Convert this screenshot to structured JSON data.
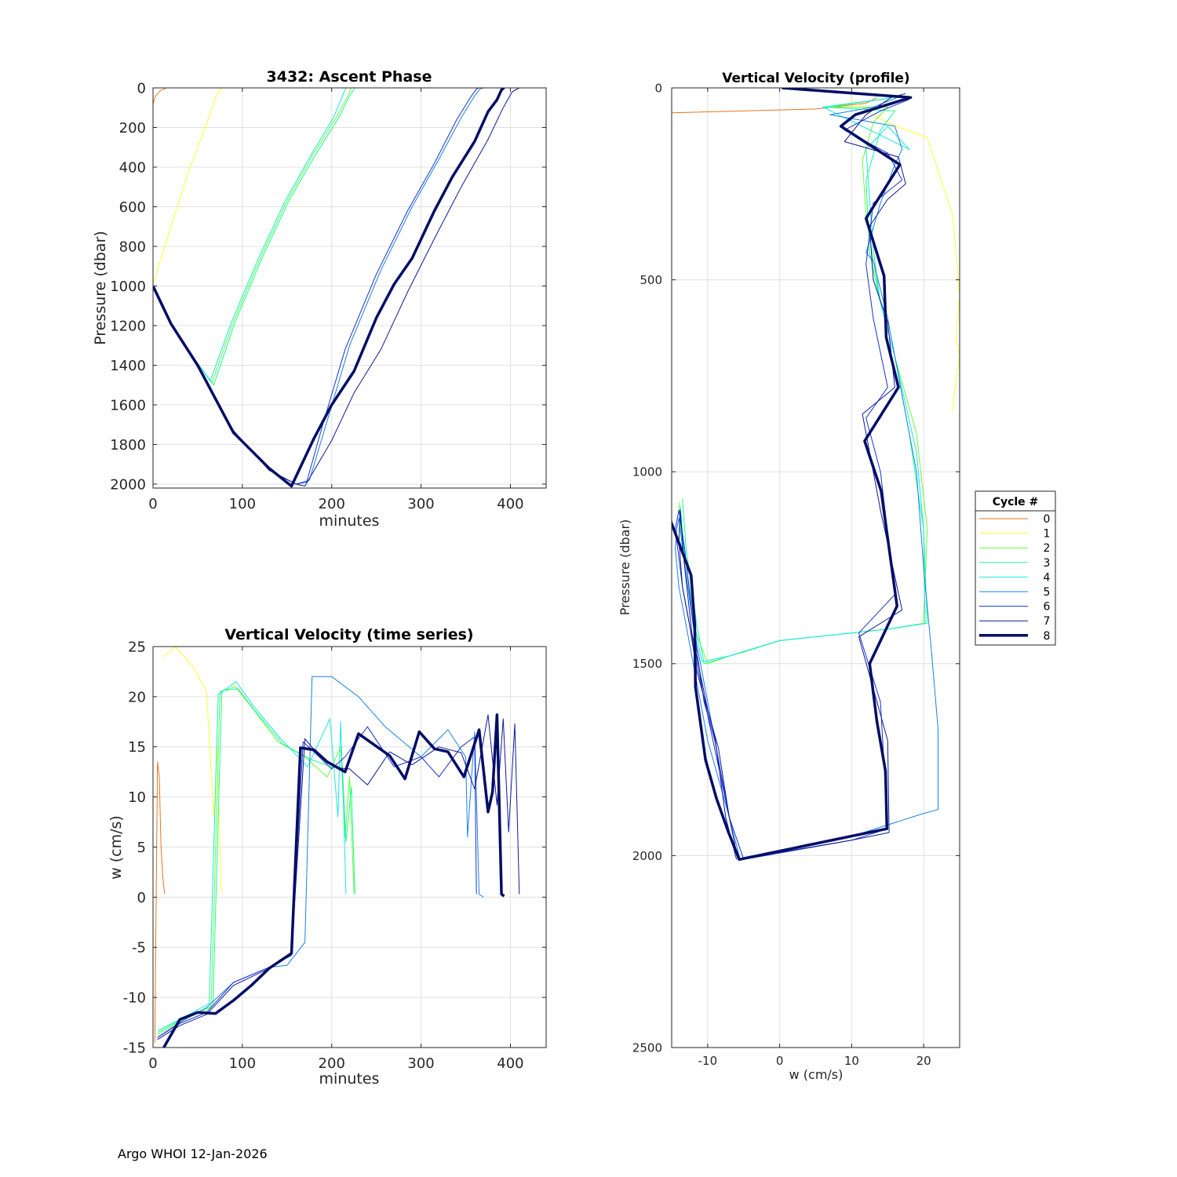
{
  "figure": {
    "footer": "Argo WHOI 12-Jan-2026"
  },
  "legend": {
    "title": "Cycle #",
    "entries": [
      "0",
      "1",
      "2",
      "3",
      "4",
      "5",
      "6",
      "7",
      "8"
    ],
    "colors": [
      "#e8751a",
      "#ffff33",
      "#66ff33",
      "#1aff99",
      "#1ae6e6",
      "#1a80e6",
      "#1a33cc",
      "#0d1a99",
      "#000d66"
    ]
  },
  "chart_data": [
    {
      "type": "line",
      "title": "3432: Ascent Phase",
      "xlabel": "minutes",
      "ylabel": "Pressure (dbar)",
      "xlim": [
        0,
        440
      ],
      "ylim": [
        0,
        2020
      ],
      "y_reversed": true,
      "xticks": [
        0,
        100,
        200,
        300,
        400
      ],
      "yticks": [
        0,
        200,
        400,
        600,
        800,
        1000,
        1200,
        1400,
        1600,
        1800,
        2000
      ],
      "grid": true,
      "series": [
        {
          "cycle": "0",
          "x": [
            0,
            3,
            8,
            15
          ],
          "y": [
            80,
            40,
            15,
            0
          ]
        },
        {
          "cycle": "1",
          "x": [
            0,
            20,
            40,
            60,
            70,
            75,
            78
          ],
          "y": [
            990,
            700,
            420,
            180,
            50,
            10,
            0
          ]
        },
        {
          "cycle": "2",
          "x": [
            0,
            20,
            45,
            66,
            90,
            120,
            150,
            180,
            205,
            218,
            222
          ],
          "y": [
            1000,
            1190,
            1360,
            1490,
            1180,
            860,
            570,
            330,
            150,
            40,
            0
          ]
        },
        {
          "cycle": "3",
          "x": [
            0,
            20,
            45,
            68,
            92,
            122,
            152,
            183,
            208,
            220,
            226
          ],
          "y": [
            1000,
            1190,
            1360,
            1500,
            1180,
            860,
            570,
            330,
            150,
            40,
            0
          ]
        },
        {
          "cycle": "4",
          "x": [
            0,
            20,
            45,
            64,
            88,
            118,
            148,
            178,
            202,
            212,
            216
          ],
          "y": [
            1000,
            1190,
            1360,
            1480,
            1180,
            860,
            570,
            330,
            150,
            40,
            0
          ]
        },
        {
          "cycle": "5",
          "x": [
            0,
            20,
            50,
            90,
            130,
            160,
            175,
            195,
            220,
            255,
            290,
            320,
            345,
            360,
            366,
            370
          ],
          "y": [
            1000,
            1190,
            1400,
            1730,
            1930,
            2000,
            1980,
            1680,
            1300,
            920,
            600,
            360,
            150,
            40,
            5,
            0
          ]
        },
        {
          "cycle": "6",
          "x": [
            0,
            20,
            50,
            90,
            130,
            160,
            172,
            190,
            215,
            250,
            285,
            315,
            340,
            355,
            362,
            365
          ],
          "y": [
            1000,
            1190,
            1400,
            1730,
            1930,
            2000,
            1990,
            1700,
            1320,
            940,
            620,
            380,
            160,
            50,
            5,
            0
          ]
        },
        {
          "cycle": "7",
          "x": [
            0,
            20,
            50,
            90,
            130,
            160,
            170,
            200,
            225,
            255,
            285,
            315,
            345,
            375,
            392,
            402,
            410
          ],
          "y": [
            1000,
            1190,
            1400,
            1730,
            1930,
            2000,
            2010,
            1780,
            1540,
            1320,
            1030,
            760,
            500,
            260,
            100,
            20,
            0
          ]
        },
        {
          "cycle": "8",
          "x": [
            0,
            20,
            50,
            90,
            130,
            155,
            180,
            200,
            225,
            250,
            270,
            290,
            315,
            335,
            360,
            375,
            385,
            390,
            393
          ],
          "y": [
            1000,
            1190,
            1400,
            1740,
            1920,
            2010,
            1770,
            1600,
            1430,
            1160,
            990,
            860,
            620,
            450,
            270,
            120,
            60,
            10,
            0
          ]
        }
      ]
    },
    {
      "type": "line",
      "title": "Vertical Velocity (time series)",
      "xlabel": "minutes",
      "ylabel": "w (cm/s)",
      "xlim": [
        0,
        440
      ],
      "ylim": [
        -15,
        25
      ],
      "xticks": [
        0,
        100,
        200,
        300,
        400
      ],
      "yticks": [
        -15,
        -10,
        -5,
        0,
        5,
        10,
        15,
        20,
        25
      ],
      "grid": true,
      "series": [
        {
          "cycle": "0",
          "x": [
            2,
            5,
            7,
            9,
            11,
            13
          ],
          "y": [
            -14.5,
            13.5,
            12,
            5,
            2,
            0.3
          ]
        },
        {
          "cycle": "1",
          "x": [
            12,
            25,
            45,
            60,
            68,
            72,
            76,
            78
          ],
          "y": [
            24,
            25,
            23,
            20.5,
            8,
            15,
            1,
            0.3
          ]
        },
        {
          "cycle": "2",
          "x": [
            5,
            30,
            65,
            75,
            92,
            110,
            140,
            170,
            195,
            210,
            215,
            220,
            225
          ],
          "y": [
            -13.7,
            -12.4,
            -11,
            20.5,
            21,
            19,
            15.5,
            14,
            12,
            15,
            6,
            12,
            0.3
          ]
        },
        {
          "cycle": "3",
          "x": [
            5,
            30,
            67,
            77,
            95,
            115,
            145,
            175,
            200,
            212,
            216,
            222,
            226
          ],
          "y": [
            -13.5,
            -12.3,
            -10.8,
            20.6,
            20.8,
            18.5,
            15.3,
            13.8,
            13,
            13,
            5.5,
            11,
            0.3
          ]
        },
        {
          "cycle": "4",
          "x": [
            5,
            30,
            63,
            73,
            93,
            113,
            143,
            173,
            198,
            207,
            210,
            213,
            216
          ],
          "y": [
            -13.3,
            -12.2,
            -10.6,
            20.2,
            21.5,
            19,
            15.8,
            13,
            17.8,
            8,
            17.5,
            10,
            0.3
          ]
        },
        {
          "cycle": "5",
          "x": [
            5,
            30,
            60,
            90,
            130,
            150,
            170,
            178,
            200,
            230,
            260,
            300,
            330,
            350,
            352,
            360,
            365,
            370
          ],
          "y": [
            -14,
            -12.5,
            -11,
            -8.5,
            -7,
            -6.8,
            -4.5,
            22,
            22,
            20,
            17,
            14,
            16.7,
            14,
            6,
            16.5,
            0.3,
            0
          ]
        },
        {
          "cycle": "6",
          "x": [
            5,
            30,
            60,
            90,
            130,
            155,
            168,
            180,
            200,
            215,
            240,
            270,
            300,
            320,
            345,
            360,
            362
          ],
          "y": [
            -14,
            -12.6,
            -11.5,
            -8.5,
            -7,
            -5.8,
            15.5,
            14.5,
            12.8,
            14,
            17,
            13,
            14,
            12,
            15,
            16,
            0.3
          ]
        },
        {
          "cycle": "7",
          "x": [
            5,
            30,
            60,
            90,
            130,
            155,
            170,
            185,
            205,
            220,
            240,
            265,
            290,
            320,
            345,
            360,
            375,
            385,
            392,
            398,
            405,
            410
          ],
          "y": [
            -14.2,
            -12.8,
            -11.7,
            -8.8,
            -7.1,
            -5.6,
            15.8,
            14.2,
            12.9,
            12.8,
            11.2,
            14.5,
            13.2,
            15.0,
            14.4,
            10.8,
            18.2,
            9.2,
            17.8,
            6.5,
            17.3,
            0.3
          ]
        },
        {
          "cycle": "8",
          "x": [
            12,
            30,
            50,
            70,
            90,
            110,
            130,
            155,
            165,
            180,
            195,
            215,
            230,
            265,
            282,
            298,
            315,
            330,
            348,
            365,
            375,
            380,
            385,
            390,
            393
          ],
          "y": [
            -15,
            -12.2,
            -11.5,
            -11.6,
            -10.3,
            -8.8,
            -7.1,
            -5.6,
            14.9,
            14.7,
            13.5,
            12.5,
            16.3,
            14.1,
            11.8,
            16.5,
            14.8,
            14.5,
            12,
            16.7,
            8.5,
            10.5,
            18.2,
            0.3,
            0.1
          ]
        }
      ]
    },
    {
      "type": "line",
      "title": "Vertical Velocity (profile)",
      "xlabel": "w (cm/s)",
      "ylabel": "Pressure (dbar)",
      "xlim": [
        -15,
        25
      ],
      "ylim": [
        0,
        2500
      ],
      "y_reversed": true,
      "xticks": [
        -10,
        0,
        10,
        20
      ],
      "yticks": [
        0,
        500,
        1000,
        1500,
        2000,
        2500
      ],
      "grid": true,
      "series": [
        {
          "cycle": "0",
          "x": [
            -15,
            5,
            12,
            13.5
          ],
          "y": [
            65,
            55,
            40,
            25
          ]
        },
        {
          "cycle": "1",
          "x": [
            10,
            12,
            15,
            20.5,
            24,
            25,
            24.5,
            25,
            24.5,
            24
          ],
          "y": [
            30,
            60,
            90,
            130,
            330,
            540,
            650,
            700,
            760,
            840
          ]
        },
        {
          "cycle": "2",
          "x": [
            -14,
            -13.5,
            -12,
            -10,
            -7,
            -5,
            0,
            10,
            15,
            20,
            20.5,
            19,
            16,
            14,
            13,
            12,
            11.5,
            13,
            15,
            7,
            14,
            17
          ],
          "y": [
            1080,
            1200,
            1400,
            1500,
            1480,
            1470,
            1440,
            1420,
            1410,
            1395,
            1150,
            900,
            700,
            560,
            450,
            330,
            190,
            90,
            50,
            50,
            30,
            20
          ]
        },
        {
          "cycle": "3",
          "x": [
            -13.5,
            -13,
            -11.5,
            -10.5,
            -7,
            0,
            10,
            15,
            20.5,
            20,
            18,
            16,
            14,
            12.5,
            12,
            14,
            16,
            6,
            14,
            17
          ],
          "y": [
            1070,
            1200,
            1400,
            1500,
            1480,
            1440,
            1420,
            1410,
            1395,
            1150,
            900,
            700,
            560,
            430,
            240,
            110,
            60,
            50,
            30,
            20
          ]
        },
        {
          "cycle": "4",
          "x": [
            -13.8,
            -13.3,
            -11.8,
            -10.8,
            -7,
            0,
            10,
            15,
            20.2,
            20,
            19,
            16,
            14,
            13,
            12,
            15,
            18,
            6,
            14,
            17
          ],
          "y": [
            1090,
            1200,
            1400,
            1495,
            1480,
            1440,
            1420,
            1410,
            1395,
            1150,
            950,
            700,
            560,
            420,
            160,
            100,
            160,
            50,
            30,
            20
          ]
        },
        {
          "cycle": "5",
          "x": [
            -5.5,
            -7,
            -10,
            -12,
            -13,
            -14,
            -14.5,
            -14.3,
            -14,
            -13.5,
            -12,
            -10,
            -8,
            -7,
            -5.5,
            10,
            20,
            22,
            22,
            21,
            20,
            19,
            17,
            15,
            13,
            12,
            14,
            16,
            17,
            16,
            7,
            13,
            17
          ],
          "y": [
            2010,
            1900,
            1700,
            1500,
            1400,
            1300,
            1200,
            1150,
            1120,
            1200,
            1400,
            1600,
            1800,
            1900,
            2010,
            1950,
            1890,
            1880,
            1670,
            1450,
            1250,
            1000,
            800,
            600,
            450,
            430,
            300,
            200,
            160,
            100,
            70,
            50,
            20
          ]
        },
        {
          "cycle": "6",
          "x": [
            -5,
            -7,
            -9.5,
            -11.5,
            -12.5,
            -13.5,
            -14.5,
            -14,
            -13.2,
            -12,
            -10.5,
            -9,
            -7,
            -5,
            10,
            15,
            14,
            11,
            16,
            14,
            12,
            15,
            13,
            12,
            13,
            17,
            15,
            9,
            14,
            18
          ],
          "y": [
            2010,
            1900,
            1680,
            1500,
            1400,
            1300,
            1150,
            1100,
            1200,
            1400,
            1600,
            1700,
            1900,
            2010,
            1960,
            1930,
            1600,
            1420,
            1320,
            1000,
            860,
            780,
            600,
            460,
            300,
            240,
            170,
            110,
            60,
            30
          ]
        },
        {
          "cycle": "7",
          "x": [
            -6,
            -7.5,
            -9,
            -11.5,
            -12.5,
            -13.5,
            -14,
            -13.8,
            -13.3,
            -12.2,
            -10,
            -8.5,
            -7,
            -5.8,
            10,
            15.2,
            15,
            11,
            17,
            14,
            11.5,
            16,
            15,
            13,
            12.5,
            15,
            17.5,
            16.5,
            9,
            12,
            15.5,
            17.5
          ],
          "y": [
            2010,
            1900,
            1690,
            1520,
            1400,
            1300,
            1180,
            1100,
            1230,
            1420,
            1620,
            1720,
            1900,
            2010,
            1960,
            1940,
            1700,
            1430,
            1360,
            1100,
            850,
            780,
            610,
            500,
            360,
            290,
            250,
            180,
            140,
            70,
            25,
            15
          ]
        },
        {
          "cycle": "8",
          "x": [
            -15.3,
            -12.3,
            -11.8,
            -11.7,
            -10.3,
            -8.8,
            -7.1,
            -5.6,
            14.9,
            14.7,
            13.5,
            12.5,
            16.3,
            14.1,
            11.8,
            16.5,
            14.8,
            14.5,
            12,
            16.7,
            8.5,
            10.5,
            18.2,
            0.3
          ],
          "y": [
            1120,
            1270,
            1400,
            1560,
            1750,
            1850,
            1940,
            2010,
            1930,
            1780,
            1650,
            1500,
            1350,
            1050,
            920,
            780,
            650,
            490,
            340,
            200,
            100,
            70,
            25,
            0
          ]
        }
      ]
    }
  ]
}
